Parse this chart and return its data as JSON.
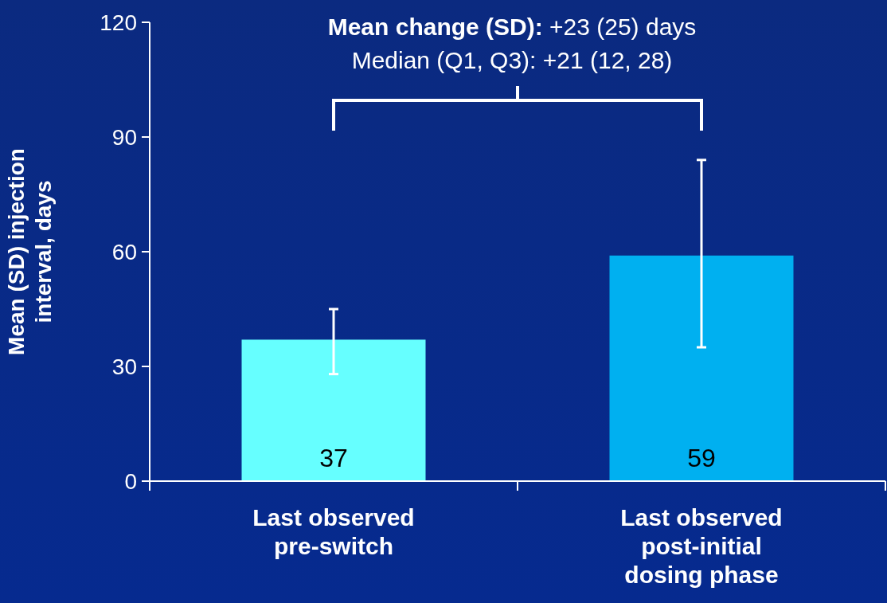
{
  "chart_data": {
    "type": "bar",
    "ylabel": "Mean (SD) injection interval, days",
    "categories": [
      "Last observed pre-switch",
      "Last observed post-initial dosing phase"
    ],
    "values": [
      37,
      59
    ],
    "colors": [
      "#66ffff",
      "#00b0f0"
    ],
    "errors": [
      [
        28,
        45
      ],
      [
        35,
        84
      ]
    ],
    "ylim": [
      0,
      120
    ],
    "yticks": [
      0,
      30,
      60,
      90,
      120
    ],
    "data_labels": true,
    "annotations": [
      "Mean change (SD): +23 (25) days",
      "Median (Q1, Q3): +21 (12, 28)"
    ]
  }
}
